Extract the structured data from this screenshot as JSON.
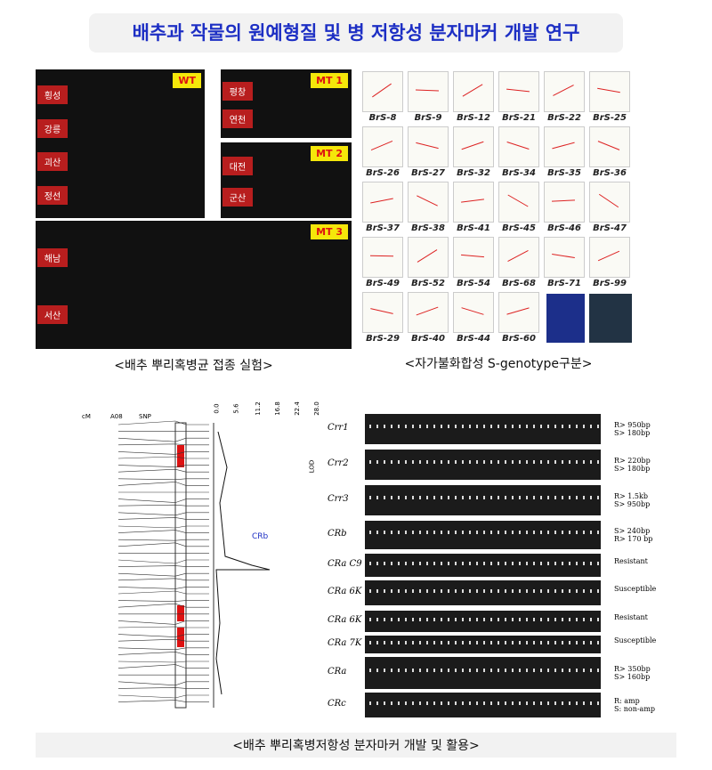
{
  "title": "배추과 작물의 원예형질 및 병 저항성 분자마커 개발 연구",
  "photos": {
    "caption": "<배추 뿌리혹병균 접종 실험>",
    "groups": [
      {
        "tag": "WT",
        "regions": [
          "횡성",
          "강릉",
          "괴산",
          "정선"
        ]
      },
      {
        "tag": "MT 1",
        "regions": [
          "평창",
          "연천"
        ]
      },
      {
        "tag": "MT 2",
        "regions": [
          "대전",
          "군산"
        ]
      },
      {
        "tag": "MT 3",
        "regions": [
          "해남",
          "서산"
        ]
      }
    ]
  },
  "genotype": {
    "caption": "<자가불화합성 S-genotype구분>",
    "labels": [
      "BrS-8",
      "BrS-9",
      "BrS-12",
      "BrS-21",
      "BrS-22",
      "BrS-25",
      "BrS-26",
      "BrS-27",
      "BrS-32",
      "BrS-34",
      "BrS-35",
      "BrS-36",
      "BrS-37",
      "BrS-38",
      "BrS-41",
      "BrS-45",
      "BrS-46",
      "BrS-47",
      "BrS-49",
      "BrS-52",
      "BrS-54",
      "BrS-68",
      "BrS-71",
      "BrS-99",
      "BrS-29",
      "BrS-40",
      "BrS-44",
      "BrS-60"
    ]
  },
  "map": {
    "headers": [
      "cM",
      "A08",
      "SNP"
    ],
    "lod_ticks": [
      "0.0",
      "5.6",
      "11.2",
      "16.8",
      "22.4",
      "28.0"
    ],
    "lod_label": "LOD",
    "peak": "CRb"
  },
  "gel": {
    "rows": [
      {
        "name": "Crr1",
        "note": "R> 950bp\nS> 180bp"
      },
      {
        "name": "Crr2",
        "note": "R> 220bp\nS> 180bp"
      },
      {
        "name": "Crr3",
        "note": "R> 1.5kb\nS> 950bp"
      },
      {
        "name": "CRb",
        "note": "S> 240bp\nR> 170 bp"
      },
      {
        "name": "CRa C9",
        "note": "Resistant"
      },
      {
        "name": "CRa 6K",
        "note": "Susceptible"
      },
      {
        "name": "CRa 6K",
        "note": "Resistant"
      },
      {
        "name": "CRa 7K",
        "note": "Susceptible"
      },
      {
        "name": "CRa",
        "note": "R> 350bp\nS> 160bp"
      },
      {
        "name": "CRc",
        "note": "R: amp\nS: non-amp"
      }
    ]
  },
  "bottom_caption": "<배추 뿌리혹병저항성 분자마커 개발 및 활용>"
}
